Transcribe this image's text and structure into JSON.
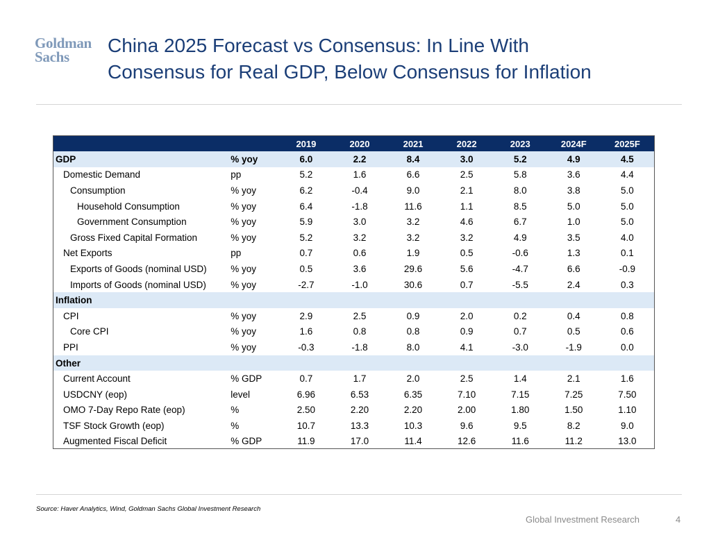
{
  "logo": {
    "line1": "Goldman",
    "line2": "Sachs"
  },
  "title": {
    "line1": "China 2025 Forecast vs Consensus: In Line With",
    "line2": "Consensus for Real GDP, Below Consensus for Inflation"
  },
  "table": {
    "years": [
      "2019",
      "2020",
      "2021",
      "2022",
      "2023",
      "2024F",
      "2025F"
    ],
    "rows": [
      {
        "type": "section",
        "label": "GDP",
        "unit": "% yoy",
        "values": [
          "6.0",
          "2.2",
          "8.4",
          "3.0",
          "5.2",
          "4.9",
          "4.5"
        ]
      },
      {
        "type": "row",
        "indent": 1,
        "label": "Domestic Demand",
        "unit": "pp",
        "values": [
          "5.2",
          "1.6",
          "6.6",
          "2.5",
          "5.8",
          "3.6",
          "4.4"
        ]
      },
      {
        "type": "row",
        "indent": 2,
        "label": "Consumption",
        "unit": "% yoy",
        "values": [
          "6.2",
          "-0.4",
          "9.0",
          "2.1",
          "8.0",
          "3.8",
          "5.0"
        ]
      },
      {
        "type": "row",
        "indent": 3,
        "label": "Household Consumption",
        "unit": "% yoy",
        "values": [
          "6.4",
          "-1.8",
          "11.6",
          "1.1",
          "8.5",
          "5.0",
          "5.0"
        ]
      },
      {
        "type": "row",
        "indent": 3,
        "label": "Government Consumption",
        "unit": "% yoy",
        "values": [
          "5.9",
          "3.0",
          "3.2",
          "4.6",
          "6.7",
          "1.0",
          "5.0"
        ]
      },
      {
        "type": "row",
        "indent": 2,
        "label": "Gross Fixed Capital Formation",
        "unit": "% yoy",
        "values": [
          "5.2",
          "3.2",
          "3.2",
          "3.2",
          "4.9",
          "3.5",
          "4.0"
        ]
      },
      {
        "type": "row",
        "indent": 1,
        "label": "Net Exports",
        "unit": "pp",
        "values": [
          "0.7",
          "0.6",
          "1.9",
          "0.5",
          "-0.6",
          "1.3",
          "0.1"
        ]
      },
      {
        "type": "row",
        "indent": 2,
        "label": "Exports of Goods (nominal USD)",
        "unit": "% yoy",
        "values": [
          "0.5",
          "3.6",
          "29.6",
          "5.6",
          "-4.7",
          "6.6",
          "-0.9"
        ]
      },
      {
        "type": "row",
        "indent": 2,
        "label": "Imports of Goods (nominal USD)",
        "unit": "% yoy",
        "values": [
          "-2.7",
          "-1.0",
          "30.6",
          "0.7",
          "-5.5",
          "2.4",
          "0.3"
        ]
      },
      {
        "type": "section",
        "label": "Inflation",
        "unit": "",
        "values": [
          "",
          "",
          "",
          "",
          "",
          "",
          ""
        ]
      },
      {
        "type": "row",
        "indent": 1,
        "label": "CPI",
        "unit": "% yoy",
        "values": [
          "2.9",
          "2.5",
          "0.9",
          "2.0",
          "0.2",
          "0.4",
          "0.8"
        ]
      },
      {
        "type": "row",
        "indent": 2,
        "label": "Core CPI",
        "unit": "% yoy",
        "values": [
          "1.6",
          "0.8",
          "0.8",
          "0.9",
          "0.7",
          "0.5",
          "0.6"
        ]
      },
      {
        "type": "row",
        "indent": 1,
        "label": "PPI",
        "unit": "% yoy",
        "values": [
          "-0.3",
          "-1.8",
          "8.0",
          "4.1",
          "-3.0",
          "-1.9",
          "0.0"
        ]
      },
      {
        "type": "section",
        "label": "Other",
        "unit": "",
        "values": [
          "",
          "",
          "",
          "",
          "",
          "",
          ""
        ]
      },
      {
        "type": "row",
        "indent": 1,
        "label": "Current Account",
        "unit": "% GDP",
        "values": [
          "0.7",
          "1.7",
          "2.0",
          "2.5",
          "1.4",
          "2.1",
          "1.6"
        ]
      },
      {
        "type": "row",
        "indent": 1,
        "label": "USDCNY (eop)",
        "unit": "level",
        "values": [
          "6.96",
          "6.53",
          "6.35",
          "7.10",
          "7.15",
          "7.25",
          "7.50"
        ]
      },
      {
        "type": "row",
        "indent": 1,
        "label": "OMO 7-Day Repo Rate (eop)",
        "unit": "%",
        "values": [
          "2.50",
          "2.20",
          "2.20",
          "2.00",
          "1.80",
          "1.50",
          "1.10"
        ]
      },
      {
        "type": "row",
        "indent": 1,
        "label": "TSF Stock Growth (eop)",
        "unit": "%",
        "values": [
          "10.7",
          "13.3",
          "10.3",
          "9.6",
          "9.5",
          "8.2",
          "9.0"
        ]
      },
      {
        "type": "row",
        "indent": 1,
        "label": "Augmented Fiscal Deficit",
        "unit": "% GDP",
        "values": [
          "11.9",
          "17.0",
          "11.4",
          "12.6",
          "11.6",
          "11.2",
          "13.0"
        ]
      }
    ]
  },
  "source": "Source: Haver Analytics, Wind, Goldman Sachs Global Investment Research",
  "footer": {
    "name": "Global Investment Research",
    "page": "4"
  },
  "colors": {
    "header_bg": "#0b2d66",
    "section_bg": "#dce9f6",
    "title": "#1b3e77",
    "logo": "#7f99b9"
  }
}
